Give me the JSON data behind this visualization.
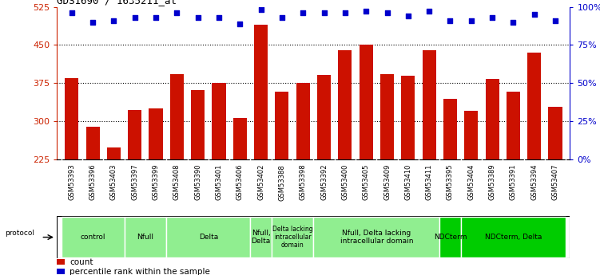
{
  "title": "GDS1690 / 1635211_at",
  "samples": [
    "GSM53393",
    "GSM53396",
    "GSM53403",
    "GSM53397",
    "GSM53399",
    "GSM53408",
    "GSM53390",
    "GSM53401",
    "GSM53406",
    "GSM53402",
    "GSM53388",
    "GSM53398",
    "GSM53392",
    "GSM53400",
    "GSM53405",
    "GSM53409",
    "GSM53410",
    "GSM53411",
    "GSM53395",
    "GSM53404",
    "GSM53389",
    "GSM53391",
    "GSM53394",
    "GSM53407"
  ],
  "counts": [
    385,
    290,
    248,
    322,
    325,
    393,
    362,
    375,
    307,
    490,
    358,
    375,
    392,
    440,
    450,
    393,
    390,
    440,
    345,
    320,
    383,
    358,
    435,
    328
  ],
  "percentile_ranks": [
    96,
    90,
    91,
    93,
    93,
    96,
    93,
    93,
    89,
    98,
    93,
    96,
    96,
    96,
    97,
    96,
    94,
    97,
    91,
    91,
    93,
    90,
    95,
    91
  ],
  "groups": [
    {
      "label": "control",
      "start": 0,
      "end": 3,
      "light": true
    },
    {
      "label": "Nfull",
      "start": 3,
      "end": 5,
      "light": true
    },
    {
      "label": "Delta",
      "start": 5,
      "end": 9,
      "light": true
    },
    {
      "label": "Nfull,\nDelta",
      "start": 9,
      "end": 10,
      "light": true
    },
    {
      "label": "Delta lacking\nintracellular\ndomain",
      "start": 10,
      "end": 12,
      "light": true
    },
    {
      "label": "Nfull, Delta lacking\nintracellular domain",
      "start": 12,
      "end": 18,
      "light": true
    },
    {
      "label": "NDCterm",
      "start": 18,
      "end": 19,
      "light": false
    },
    {
      "label": "NDCterm, Delta",
      "start": 19,
      "end": 24,
      "light": false
    }
  ],
  "ylim_left": [
    225,
    525
  ],
  "yticks_left": [
    225,
    300,
    375,
    450,
    525
  ],
  "ylim_right": [
    0,
    100
  ],
  "yticks_right": [
    0,
    25,
    50,
    75,
    100
  ],
  "bar_color": "#cc1100",
  "dot_color": "#0000cc",
  "bg_color": "#ffffff",
  "left_axis_color": "#cc2200",
  "right_axis_color": "#0000cc",
  "group_color_light": "#90ee90",
  "group_color_dark": "#00cc00",
  "tick_bg_color": "#d0d0d0"
}
